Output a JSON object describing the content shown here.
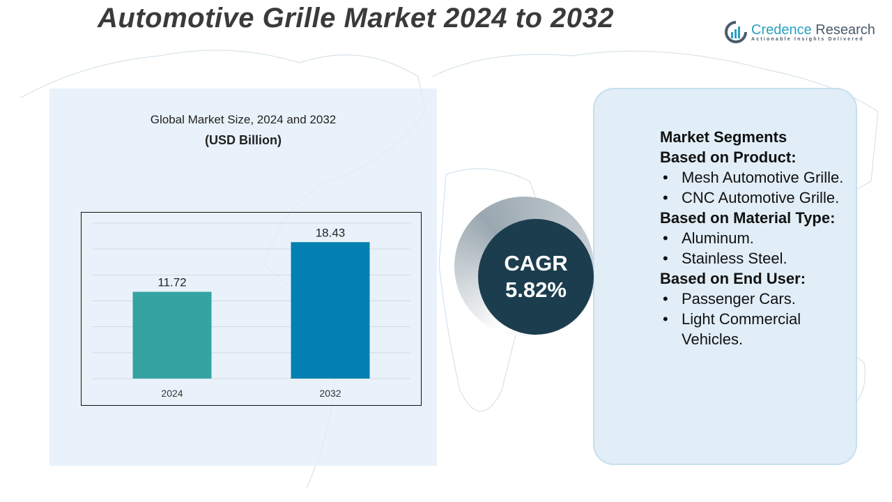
{
  "title": "Automotive Grille Market 2024 to 2032",
  "logo": {
    "name_part1": "Credence",
    "name_part2": " Research",
    "tagline": "Actionable Insights Delivered"
  },
  "chart_heading": "Global Market Size, 2024 and 2032",
  "chart_unit": "(USD Billion)",
  "chart_data": {
    "type": "bar",
    "categories": [
      "2024",
      "2032"
    ],
    "values": [
      11.72,
      18.43
    ],
    "labels": [
      "11.72",
      "18.43"
    ],
    "colors": [
      "#36a3a3",
      "#0580b2"
    ],
    "ylim": [
      0,
      21
    ],
    "grid": true,
    "xlabel": "",
    "ylabel": ""
  },
  "cagr": {
    "label": "CAGR",
    "value": "5.82%"
  },
  "segments": {
    "heading": "Market Segments",
    "groups": [
      {
        "title": "Based on Product:",
        "items": [
          "Mesh Automotive Grille.",
          "CNC Automotive Grille."
        ]
      },
      {
        "title": "Based on Material Type:",
        "items": [
          "Aluminum.",
          "Stainless Steel."
        ]
      },
      {
        "title": "Based on End User:",
        "items": [
          "Passenger Cars.",
          "Light Commercial Vehicles."
        ]
      }
    ]
  }
}
